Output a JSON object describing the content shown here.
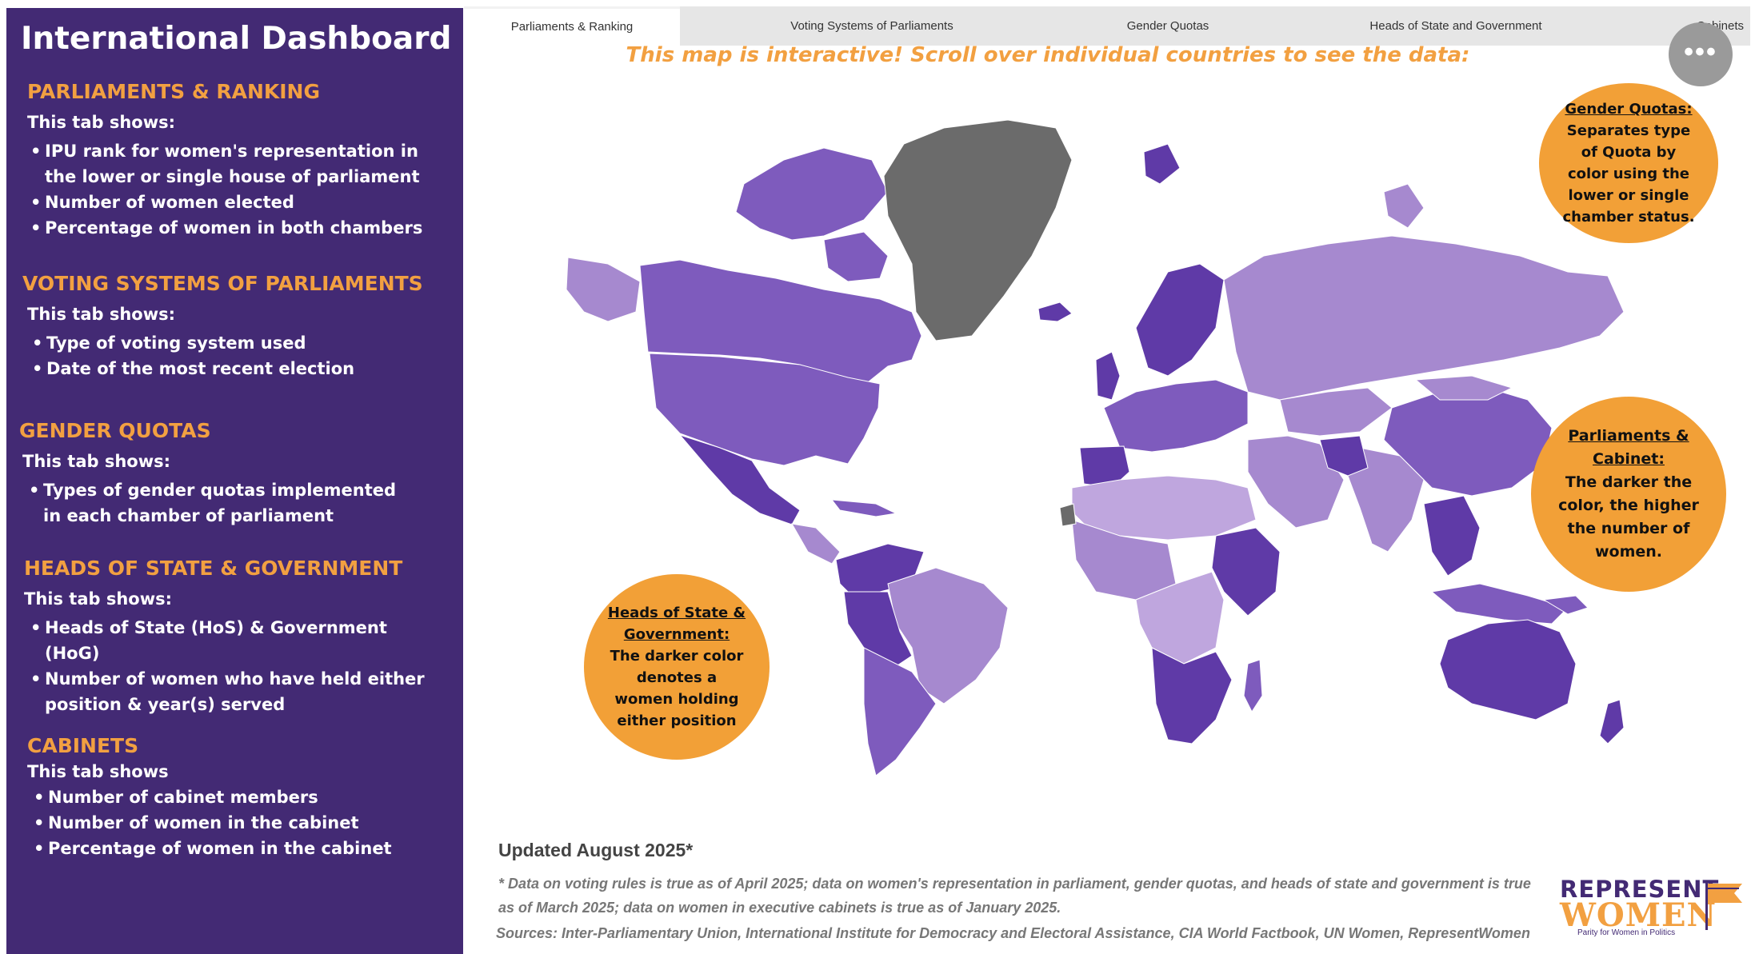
{
  "sidebar": {
    "title": "International Dashboard",
    "sections": [
      {
        "heading": "PARLIAMENTS & RANKING",
        "subheading": "This tab shows:",
        "items": [
          "IPU rank for women's representation in the lower or single house of parliament",
          "Number of women elected",
          "Percentage of women in both chambers"
        ]
      },
      {
        "heading": "VOTING SYSTEMS OF PARLIAMENTS",
        "subheading": "This tab shows:",
        "items": [
          "Type of voting system used",
          "Date of the most recent election"
        ]
      },
      {
        "heading": "GENDER QUOTAS",
        "subheading": "This tab shows:",
        "items": [
          "Types of gender quotas implemented in each chamber of parliament"
        ]
      },
      {
        "heading": "HEADS OF STATE & GOVERNMENT",
        "subheading": "This tab shows:",
        "items": [
          "Heads of State (HoS) & Government (HoG)",
          "Number of women who have held either position & year(s) served"
        ]
      },
      {
        "heading": "CABINETS",
        "subheading": "This tab shows",
        "items": [
          "Number of cabinet members",
          "Number of women in the cabinet",
          "Percentage of women in the cabinet"
        ]
      }
    ]
  },
  "tabs": [
    {
      "label": "Parliaments & Ranking",
      "active": true
    },
    {
      "label": "Voting Systems of Parliaments",
      "active": false
    },
    {
      "label": "Gender Quotas",
      "active": false
    },
    {
      "label": "Heads of State and Government",
      "active": false
    },
    {
      "label": "Cabinets",
      "active": false
    }
  ],
  "banner": "This map is interactive! Scroll over individual countries to see the data:",
  "more_button": "•••",
  "bubbles": {
    "gender_quotas": {
      "title": "Gender Quotas:",
      "lines": [
        "Separates type",
        "of Quota by",
        "color using the",
        "lower or single",
        "chamber status."
      ]
    },
    "parliaments_cabinet": {
      "title_lines": [
        "Parliaments &",
        "Cabinet:"
      ],
      "lines": [
        "The darker the",
        "color, the higher",
        "the number of",
        "women."
      ]
    },
    "heads_of_state": {
      "title_lines": [
        "Heads of State &",
        "Government:"
      ],
      "lines": [
        "The darker color",
        "denotes a",
        "women holding",
        "either position"
      ]
    }
  },
  "footer": {
    "updated": "Updated August 2025*",
    "note": "* Data on voting rules is true as of April 2025; data on women's representation in parliament, gender quotas, and heads of state and government is true as of March 2025; data on women in executive cabinets is true as of January 2025.",
    "sources": "Sources: Inter-Parliamentary Union, International Institute for Democracy and Electoral Assistance, CIA World Factbook, UN Women, RepresentWomen"
  },
  "logo": {
    "line1": "REPRESENT",
    "line2": "WOMEN",
    "tagline": "Parity for Women in Politics"
  },
  "colors": {
    "sidebar_bg": "#432a74",
    "accent_orange": "#f2a041",
    "map_dark": "#5f3aa7",
    "map_mid": "#7e5bbd",
    "map_light": "#a689cf",
    "map_lighter": "#bfa6de",
    "map_nodata": "#6b6b6b"
  }
}
